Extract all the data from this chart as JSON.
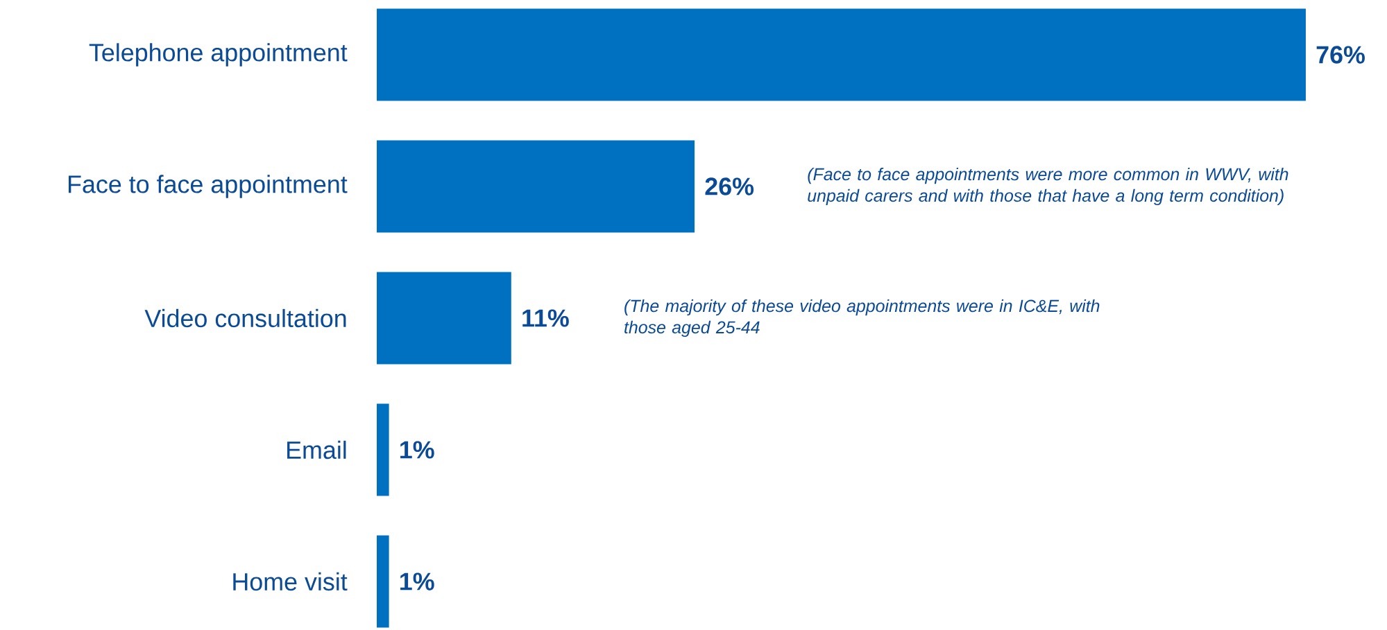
{
  "chart_data": {
    "type": "bar",
    "orientation": "horizontal",
    "categories": [
      "Telephone appointment",
      "Face to face appointment",
      "Video consultation",
      "Email",
      "Home visit"
    ],
    "values": [
      76,
      26,
      11,
      1,
      1
    ],
    "value_labels": [
      "76%",
      "26%",
      "11%",
      "1%",
      "1%"
    ],
    "color": "#0070c0",
    "annotations": [
      "(Face to face appointments were more common in WWV, with unpaid carers and with those that have a long term condition)",
      "(The majority of these video appointments were in IC&E, with those aged 25-44"
    ]
  }
}
